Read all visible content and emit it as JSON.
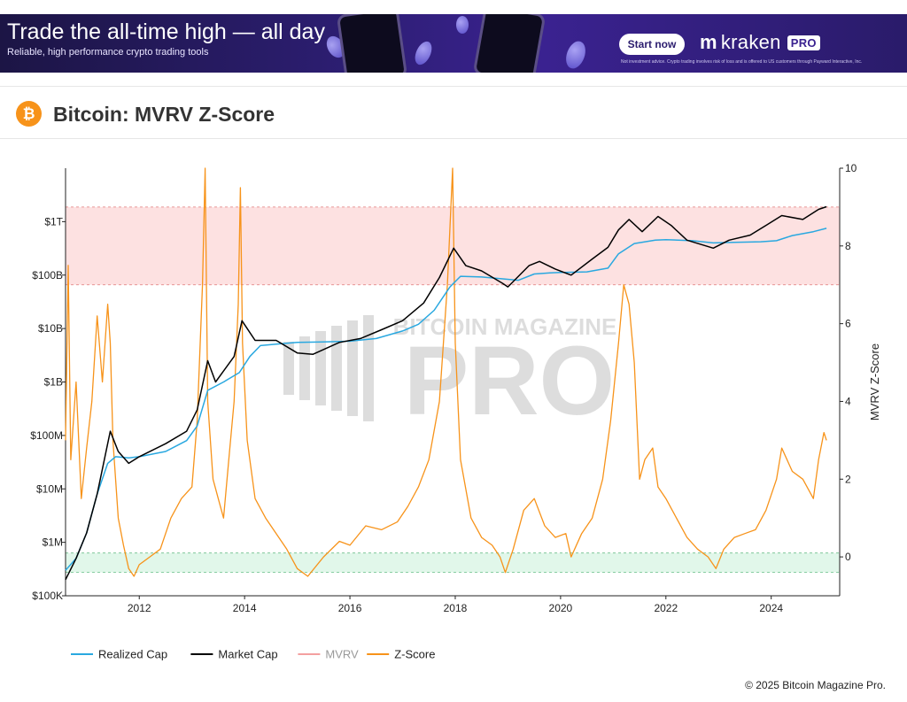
{
  "ad": {
    "headline": "Trade the all-time high — all day",
    "subline": "Reliable, high performance crypto trading tools",
    "cta": "Start now",
    "brand": "kraken",
    "brand_badge": "PRO",
    "disclaimer": "Not investment advice. Crypto trading involves risk of loss and is offered to US customers through Payward Interactive, Inc."
  },
  "header": {
    "title": "Bitcoin: MVRV Z-Score",
    "logo_glyph": "₿"
  },
  "watermark": {
    "line1": "BITCOIN MAGAZINE",
    "line2": "PRO"
  },
  "footer": {
    "copyright": "© 2025 Bitcoin Magazine Pro."
  },
  "colors": {
    "realized": "#29a8e0",
    "market": "#000000",
    "mvrv": "#f4a0a0",
    "zscore": "#f7931a",
    "red_band": "#fde1e1",
    "green_band": "#e1f7ea"
  },
  "chart_data": {
    "type": "line",
    "x_ticks": [
      "2012",
      "2014",
      "2016",
      "2018",
      "2020",
      "2022",
      "2024"
    ],
    "x_range": [
      2010.6,
      2025.3
    ],
    "y_left": {
      "scale": "log",
      "range": [
        100000,
        10000000000000
      ],
      "ticks": [
        {
          "v": 100000,
          "label": "$100K"
        },
        {
          "v": 1000000,
          "label": "$1M"
        },
        {
          "v": 10000000,
          "label": "$10M"
        },
        {
          "v": 100000000,
          "label": "$100M"
        },
        {
          "v": 1000000000,
          "label": "$1B"
        },
        {
          "v": 10000000000,
          "label": "$10B"
        },
        {
          "v": 100000000000,
          "label": "$100B"
        },
        {
          "v": 1000000000000,
          "label": "$1T"
        }
      ]
    },
    "y_right": {
      "label": "MVRV Z-Score",
      "range": [
        -1,
        10
      ],
      "ticks": [
        0,
        2,
        4,
        6,
        8,
        10
      ]
    },
    "bands": [
      {
        "axis": "right",
        "from": 7,
        "to": 9
      },
      {
        "axis": "right",
        "from": -0.4,
        "to": 0.1
      }
    ],
    "series": [
      {
        "name": "Realized Cap",
        "axis": "left",
        "x": [
          2010.6,
          2010.8,
          2011.0,
          2011.2,
          2011.4,
          2011.55,
          2011.8,
          2012.0,
          2012.5,
          2012.9,
          2013.1,
          2013.3,
          2013.6,
          2013.9,
          2014.1,
          2014.3,
          2014.6,
          2015.0,
          2015.5,
          2016.0,
          2016.5,
          2017.0,
          2017.3,
          2017.6,
          2017.9,
          2018.1,
          2018.5,
          2018.9,
          2019.2,
          2019.5,
          2019.8,
          2020.0,
          2020.5,
          2020.9,
          2021.1,
          2021.4,
          2021.8,
          2022.0,
          2022.5,
          2022.9,
          2023.3,
          2023.8,
          2024.1,
          2024.4,
          2024.8,
          2025.05
        ],
        "y": [
          300000,
          500000,
          1500000,
          8000000,
          30000000,
          40000000,
          38000000,
          40000000,
          50000000,
          80000000,
          150000000,
          700000000,
          1000000000,
          1500000000,
          3000000000,
          4800000000,
          5100000000,
          5500000000,
          5600000000,
          5800000000,
          6500000000,
          9000000000,
          12000000000,
          22000000000,
          60000000000,
          95000000000,
          92000000000,
          85000000000,
          80000000000,
          105000000000,
          110000000000,
          112000000000,
          115000000000,
          135000000000,
          250000000000,
          390000000000,
          450000000000,
          460000000000,
          440000000000,
          400000000000,
          410000000000,
          420000000000,
          440000000000,
          550000000000,
          650000000000,
          750000000000
        ]
      },
      {
        "name": "Market Cap",
        "axis": "left",
        "x": [
          2010.6,
          2010.8,
          2011.0,
          2011.2,
          2011.45,
          2011.6,
          2011.8,
          2012.0,
          2012.5,
          2012.9,
          2013.1,
          2013.3,
          2013.45,
          2013.8,
          2013.95,
          2014.2,
          2014.6,
          2015.0,
          2015.3,
          2015.8,
          2016.2,
          2016.6,
          2017.0,
          2017.4,
          2017.7,
          2017.97,
          2018.2,
          2018.5,
          2018.9,
          2019.0,
          2019.4,
          2019.6,
          2019.9,
          2020.2,
          2020.6,
          2020.9,
          2021.1,
          2021.3,
          2021.55,
          2021.85,
          2022.1,
          2022.4,
          2022.9,
          2023.2,
          2023.6,
          2023.9,
          2024.2,
          2024.6,
          2024.9,
          2025.05
        ],
        "y": [
          200000,
          500000,
          1500000,
          8000000,
          120000000,
          50000000,
          30000000,
          40000000,
          70000000,
          120000000,
          300000000,
          2500000000,
          1000000000,
          3000000000,
          14000000000,
          6000000000,
          6000000000,
          3500000000,
          3300000000,
          5500000000,
          6500000000,
          9500000000,
          14000000000,
          30000000000,
          90000000000,
          320000000000,
          150000000000,
          120000000000,
          70000000000,
          60000000000,
          150000000000,
          180000000000,
          130000000000,
          100000000000,
          200000000000,
          330000000000,
          700000000000,
          1100000000000,
          650000000000,
          1250000000000,
          850000000000,
          450000000000,
          320000000000,
          450000000000,
          560000000000,
          850000000000,
          1300000000000,
          1100000000000,
          1700000000000,
          1900000000000
        ]
      },
      {
        "name": "MVRV",
        "axis": "right",
        "x": [],
        "y": []
      },
      {
        "name": "Z-Score",
        "axis": "right",
        "x": [
          2010.6,
          2010.65,
          2010.7,
          2010.8,
          2010.9,
          2011.0,
          2011.1,
          2011.2,
          2011.3,
          2011.4,
          2011.45,
          2011.5,
          2011.6,
          2011.7,
          2011.8,
          2011.9,
          2012.0,
          2012.2,
          2012.4,
          2012.6,
          2012.8,
          2013.0,
          2013.1,
          2013.2,
          2013.25,
          2013.3,
          2013.4,
          2013.5,
          2013.6,
          2013.7,
          2013.8,
          2013.88,
          2013.92,
          2013.96,
          2014.05,
          2014.2,
          2014.4,
          2014.6,
          2014.8,
          2015.0,
          2015.2,
          2015.5,
          2015.8,
          2016.0,
          2016.3,
          2016.6,
          2016.9,
          2017.1,
          2017.3,
          2017.5,
          2017.7,
          2017.85,
          2017.95,
          2018.0,
          2018.1,
          2018.3,
          2018.5,
          2018.7,
          2018.85,
          2018.95,
          2019.1,
          2019.3,
          2019.5,
          2019.7,
          2019.9,
          2020.1,
          2020.2,
          2020.4,
          2020.6,
          2020.8,
          2020.95,
          2021.1,
          2021.2,
          2021.3,
          2021.4,
          2021.5,
          2021.6,
          2021.75,
          2021.85,
          2022.0,
          2022.2,
          2022.4,
          2022.6,
          2022.8,
          2022.95,
          2023.1,
          2023.3,
          2023.5,
          2023.7,
          2023.9,
          2024.1,
          2024.2,
          2024.4,
          2024.6,
          2024.8,
          2024.9,
          2025.0,
          2025.05
        ],
        "y": [
          3.0,
          7.5,
          2.5,
          4.5,
          1.5,
          2.8,
          4.0,
          6.2,
          4.5,
          6.5,
          5.5,
          3.0,
          1.0,
          0.3,
          -0.3,
          -0.5,
          -0.2,
          0.0,
          0.2,
          1.0,
          1.5,
          1.8,
          3.5,
          7.0,
          10.0,
          4.0,
          2.0,
          1.5,
          1.0,
          2.5,
          4.0,
          6.5,
          9.5,
          5.5,
          3.0,
          1.5,
          1.0,
          0.6,
          0.2,
          -0.3,
          -0.5,
          0.0,
          0.4,
          0.3,
          0.8,
          0.7,
          0.9,
          1.3,
          1.8,
          2.5,
          4.0,
          7.0,
          10.0,
          5.5,
          2.5,
          1.0,
          0.5,
          0.3,
          0.0,
          -0.4,
          0.2,
          1.2,
          1.5,
          0.8,
          0.5,
          0.6,
          0.0,
          0.6,
          1.0,
          2.0,
          3.5,
          5.5,
          7.0,
          6.5,
          5.0,
          2.0,
          2.5,
          2.8,
          1.8,
          1.5,
          1.0,
          0.5,
          0.2,
          0.0,
          -0.3,
          0.2,
          0.5,
          0.6,
          0.7,
          1.2,
          2.0,
          2.8,
          2.2,
          2.0,
          1.5,
          2.5,
          3.2,
          3.0
        ]
      }
    ],
    "legend": {
      "placement": "bottom-left"
    },
    "grid": false
  }
}
